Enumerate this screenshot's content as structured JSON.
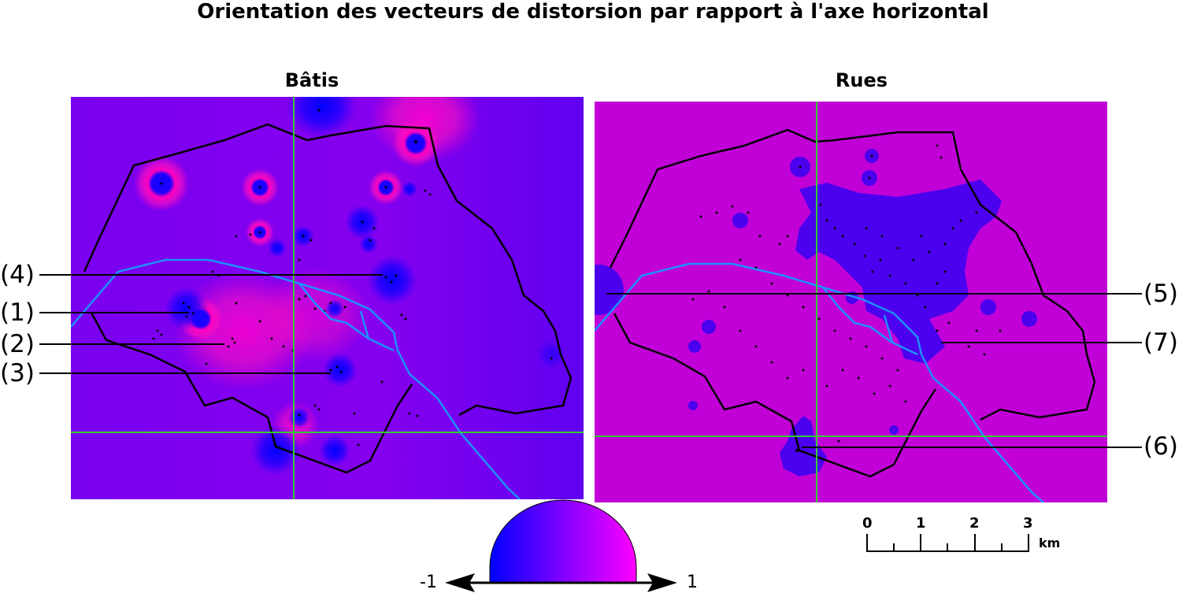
{
  "title": "Orientation des vecteurs de distorsion par rapport à l'axe horizontal",
  "panels": [
    {
      "title": "Bâtis"
    },
    {
      "title": "Rues"
    }
  ],
  "callouts_left": [
    "(4)",
    "(1)",
    "(2)",
    "(3)"
  ],
  "callouts_right": [
    "(5)",
    "(7)",
    "(6)"
  ],
  "legend": {
    "min_label": "-1",
    "max_label": "1",
    "color_min": "#0000ff",
    "color_max": "#ff00ff"
  },
  "scale_bar": {
    "ticks": [
      "0",
      "1",
      "2",
      "3"
    ],
    "unit": "km"
  },
  "colors": {
    "batis_background": "#8a00ee",
    "rues_background": "#c100d8",
    "boundary": "#000000",
    "river": "#1e90ff",
    "axes": "#33cc33"
  }
}
